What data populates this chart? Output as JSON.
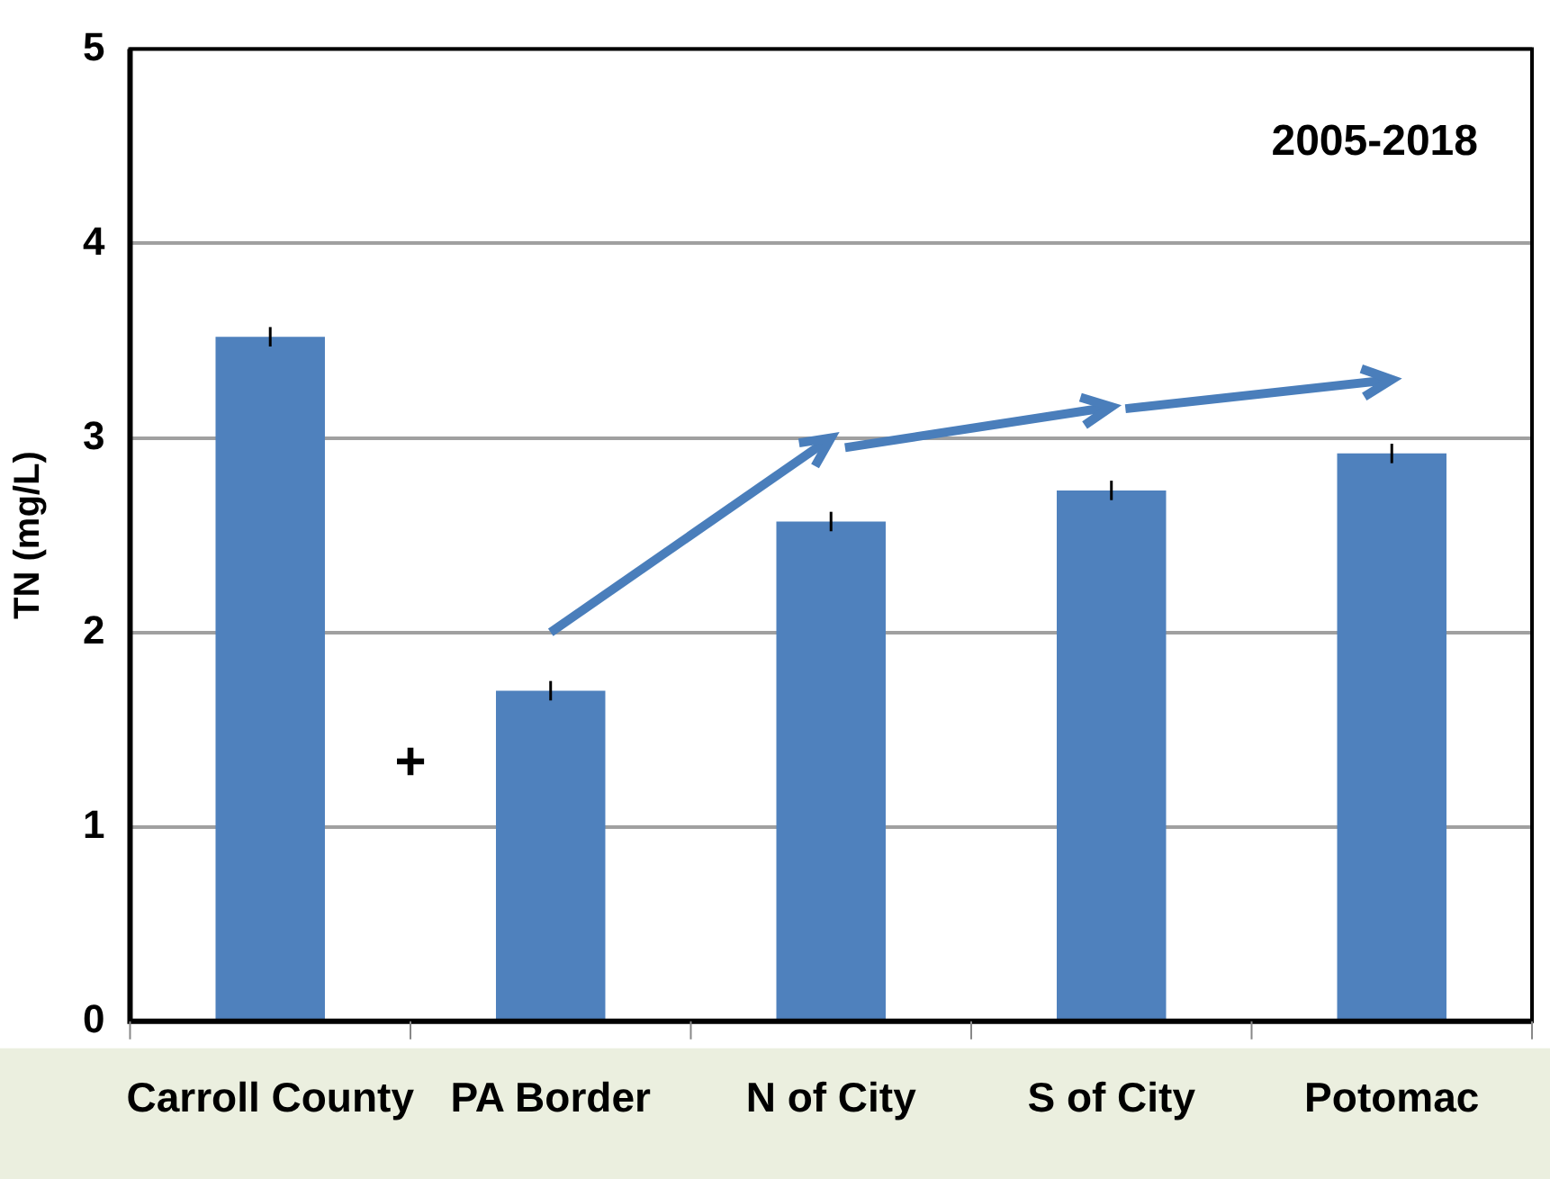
{
  "chart_data": {
    "type": "bar",
    "title": "2005-2018",
    "ylabel": "TN (mg/L)",
    "categories": [
      "Carroll County",
      "PA Border",
      "N of City",
      "S of City",
      "Potomac"
    ],
    "values": [
      3.52,
      1.7,
      2.57,
      2.73,
      2.92
    ],
    "errors": [
      0.05,
      0.05,
      0.05,
      0.05,
      0.05
    ],
    "color": "#4f81bd",
    "ylim": [
      0,
      5
    ],
    "yticks": [
      0,
      1,
      2,
      3,
      4,
      5
    ],
    "grid": "y",
    "legend": false,
    "annotations": [
      "+"
    ]
  }
}
